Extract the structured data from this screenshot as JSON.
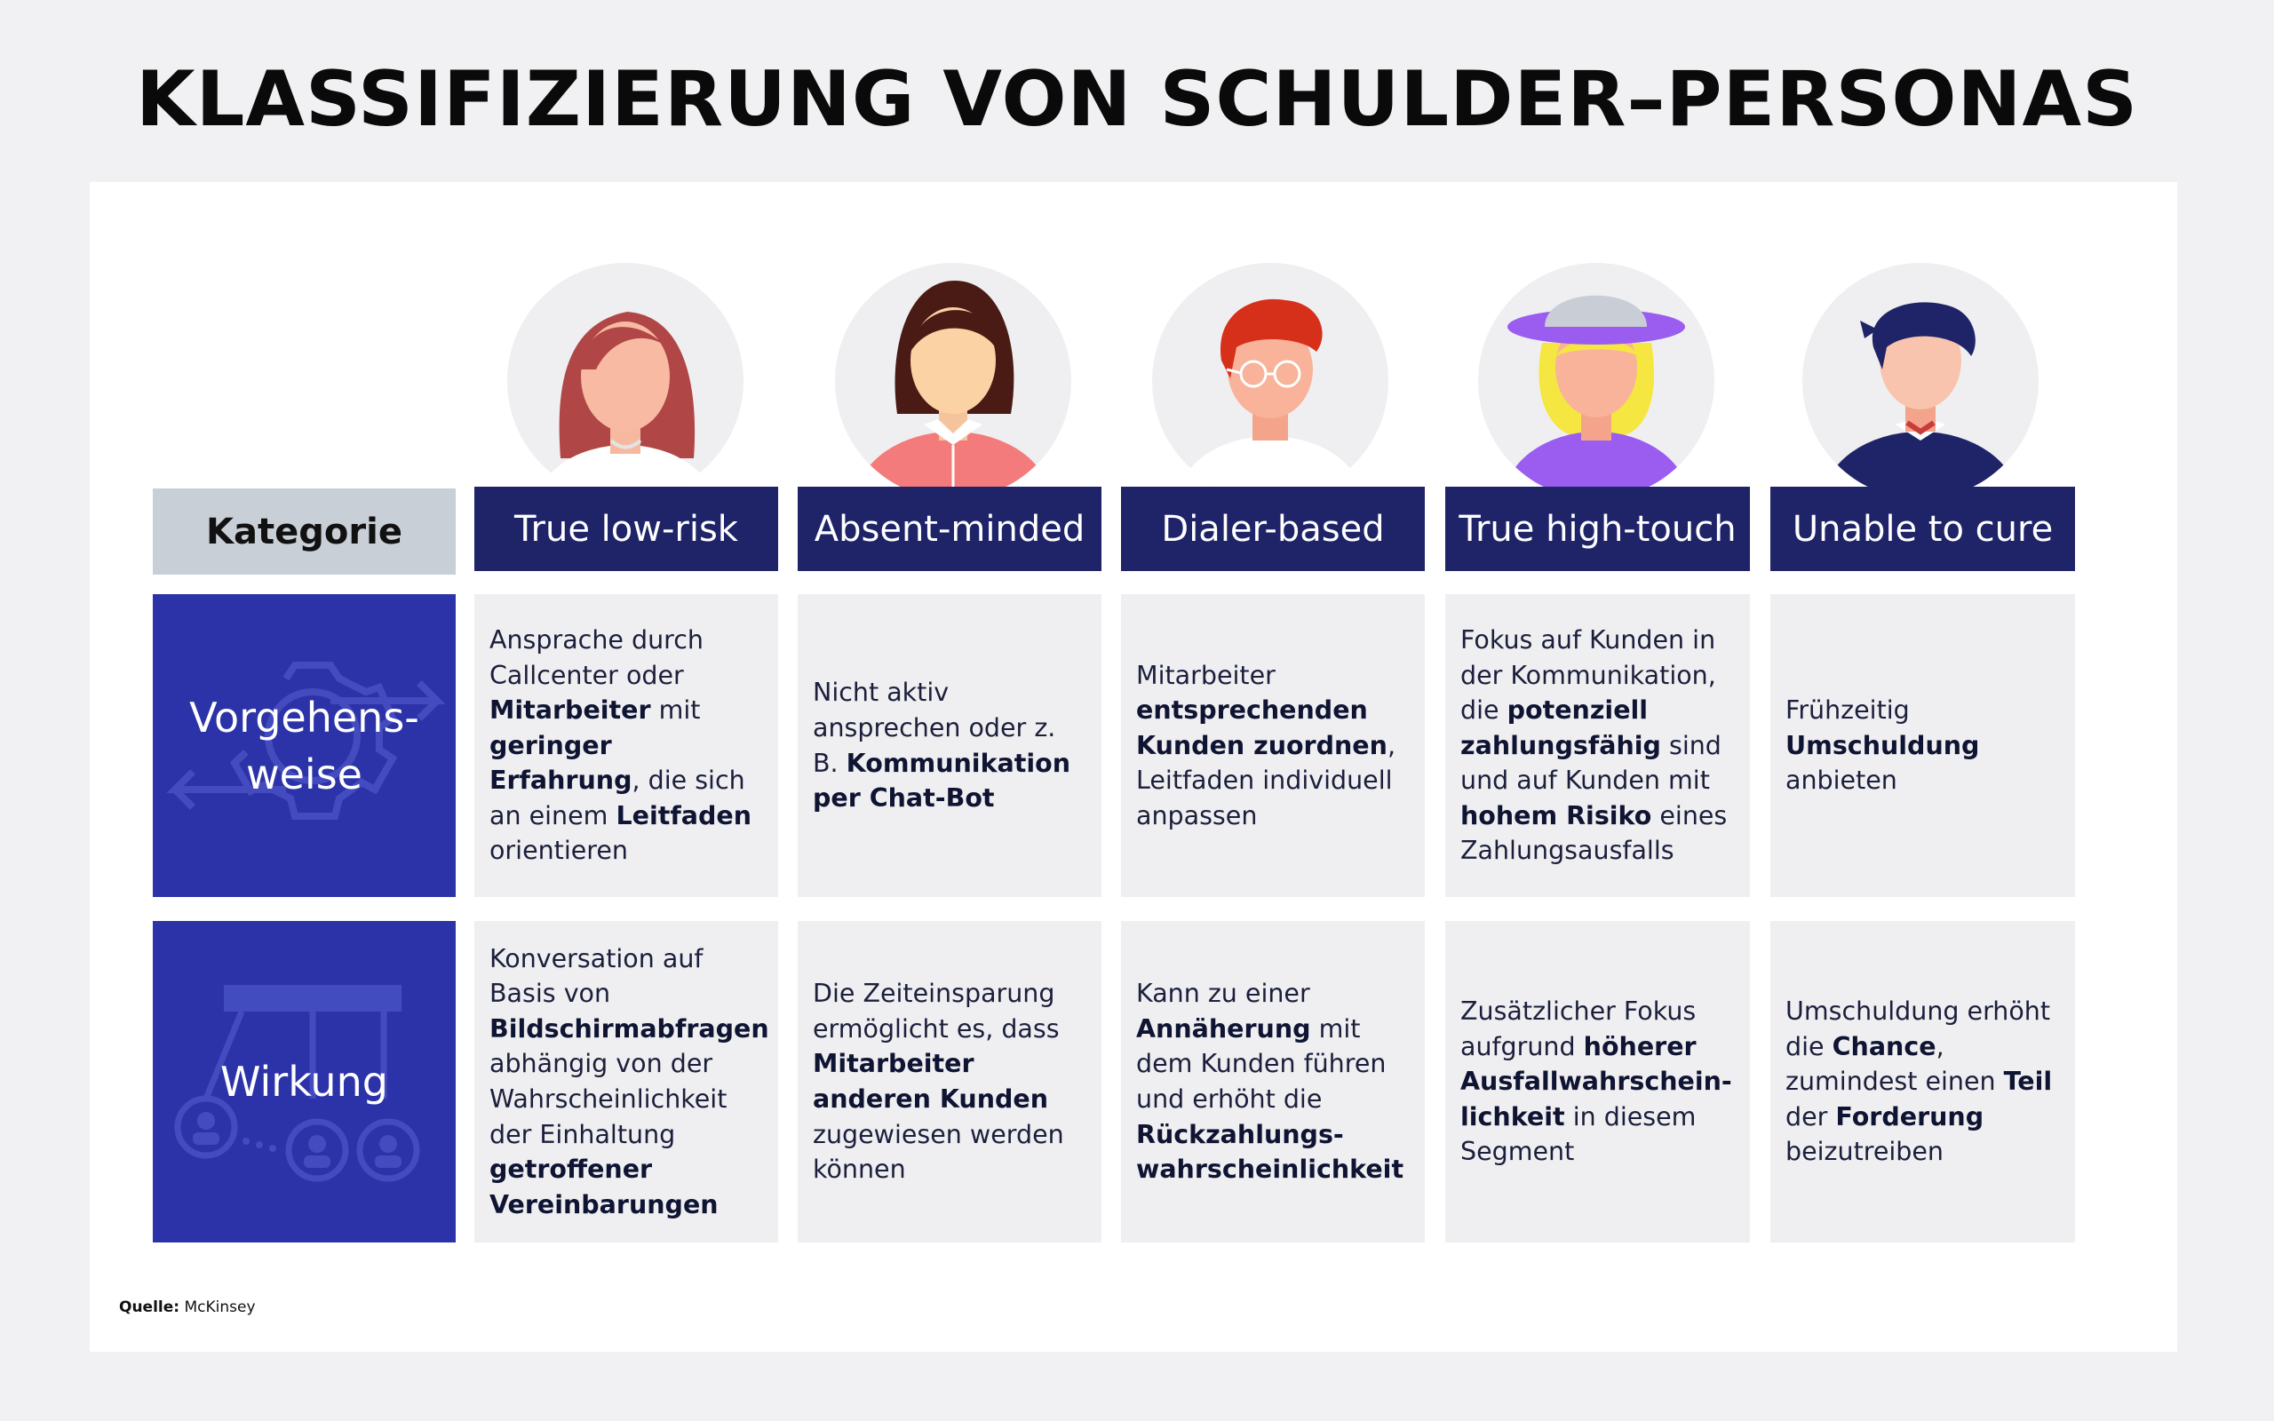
{
  "title": "KLASSIFIZIERUNG VON SCHULDER–PERSONAS",
  "header": {
    "category_label": "Kategorie",
    "personas": [
      "True low-risk",
      "Absent-minded",
      "Dialer-based",
      "True high-touch",
      "Unable to cure"
    ]
  },
  "avatar_icons": [
    "woman-red-hair-avatar-icon",
    "woman-dark-hair-avatar-icon",
    "man-glasses-red-hair-avatar-icon",
    "person-hat-yellow-hair-avatar-icon",
    "man-navy-hair-avatar-icon"
  ],
  "rows": {
    "approach": {
      "label": "Vorgehens-\nweise",
      "icon": "gear-arrows-icon",
      "cells": [
        [
          {
            "t": "Ansprache durch Callcenter oder "
          },
          {
            "t": "Mitarbeiter",
            "b": true
          },
          {
            "t": " mit "
          },
          {
            "t": "geringer Erfahrung",
            "b": true
          },
          {
            "t": ", die sich an einem "
          },
          {
            "t": "Leitfaden",
            "b": true
          },
          {
            "t": " orientieren"
          }
        ],
        [
          {
            "t": "Nicht aktiv ansprechen oder z. B. "
          },
          {
            "t": "Kommunikation per Chat-Bot",
            "b": true
          }
        ],
        [
          {
            "t": "Mitarbeiter "
          },
          {
            "t": "entsprechenden Kunden zuordnen",
            "b": true
          },
          {
            "t": ", Leitfaden individuell anpassen"
          }
        ],
        [
          {
            "t": "Fokus auf Kunden in der Kommunikation, die "
          },
          {
            "t": "potenziell zahlungsfähig",
            "b": true
          },
          {
            "t": " sind und auf Kunden mit "
          },
          {
            "t": "hohem Risiko",
            "b": true
          },
          {
            "t": " eines Zahlungsausfalls"
          }
        ],
        [
          {
            "t": "Frühzeitig "
          },
          {
            "t": "Umschuldung",
            "b": true
          },
          {
            "t": " anbieten"
          }
        ]
      ]
    },
    "effect": {
      "label": "Wirkung",
      "icon": "people-connection-icon",
      "cells": [
        [
          {
            "t": "Konversation auf Basis von "
          },
          {
            "t": "Bildschirmabfragen",
            "b": true
          },
          {
            "t": " abhängig von der Wahrscheinlichkeit der Einhaltung "
          },
          {
            "t": "getroffener Vereinbarungen",
            "b": true
          }
        ],
        [
          {
            "t": "Die Zeiteinsparung ermöglicht es, dass "
          },
          {
            "t": "Mitarbeiter anderen Kunden",
            "b": true
          },
          {
            "t": " zugewiesen werden können"
          }
        ],
        [
          {
            "t": "Kann zu einer "
          },
          {
            "t": "Annäherung",
            "b": true
          },
          {
            "t": " mit dem Kunden führen und erhöht die "
          },
          {
            "t": "Rückzahlungs-wahrscheinlichkeit",
            "b": true
          }
        ],
        [
          {
            "t": "Zusätzlicher Fokus aufgrund "
          },
          {
            "t": "höherer Ausfallwahrschein-lichkeit",
            "b": true
          },
          {
            "t": " in diesem Segment"
          }
        ],
        [
          {
            "t": "Umschuldung erhöht die "
          },
          {
            "t": "Chance",
            "b": true
          },
          {
            "t": ", zumindest einen "
          },
          {
            "t": "Teil",
            "b": true
          },
          {
            "t": " der "
          },
          {
            "t": "Forderung",
            "b": true
          },
          {
            "t": " beizutreiben"
          }
        ]
      ]
    }
  },
  "source": {
    "label": "Quelle:",
    "value": "McKinsey"
  },
  "colors": {
    "navy": "#1f2469",
    "row_blue": "#2c33a8",
    "category_gray": "#c9cfd7",
    "cell_gray": "#efeff1"
  }
}
